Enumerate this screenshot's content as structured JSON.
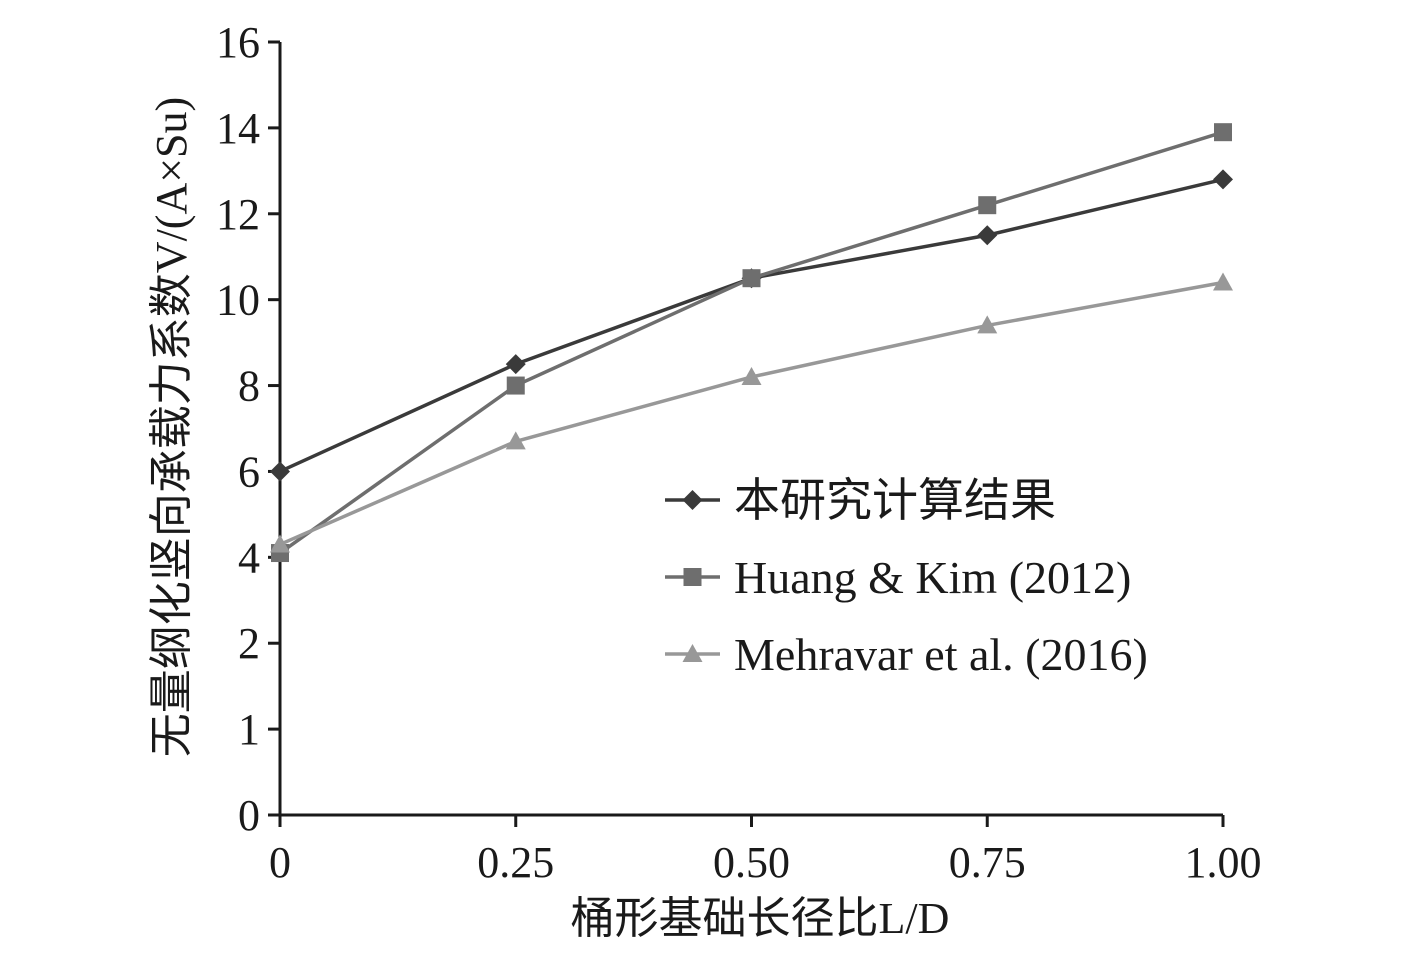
{
  "chart_data": {
    "type": "line",
    "xlabel": "桶形基础长径比L/D",
    "ylabel": "无量纲化竖向承载力系数V/(A×Su)",
    "x": [
      0,
      0.25,
      0.5,
      0.75,
      1.0
    ],
    "x_tick_labels": [
      "0",
      "0.25",
      "0.50",
      "0.75",
      "1.00"
    ],
    "y_tick_labels": [
      "0",
      "1",
      "2",
      "4",
      "6",
      "8",
      "10",
      "12",
      "14",
      "16"
    ],
    "y_tick_values": [
      0,
      1,
      2,
      4,
      6,
      8,
      10,
      12,
      14,
      16
    ],
    "grid": false,
    "legend_position": "center-right",
    "series": [
      {
        "name": "本研究计算结果",
        "marker": "diamond",
        "color": "#3a3a3a",
        "values": [
          6.0,
          8.5,
          10.5,
          11.5,
          12.8
        ]
      },
      {
        "name": "Huang & Kim (2012)",
        "marker": "square",
        "color": "#6e6e6e",
        "values": [
          4.1,
          8.0,
          10.5,
          12.2,
          13.9
        ]
      },
      {
        "name": "Mehravar et al. (2016)",
        "marker": "triangle",
        "color": "#989898",
        "values": [
          4.3,
          6.7,
          8.2,
          9.4,
          10.4
        ]
      }
    ]
  }
}
